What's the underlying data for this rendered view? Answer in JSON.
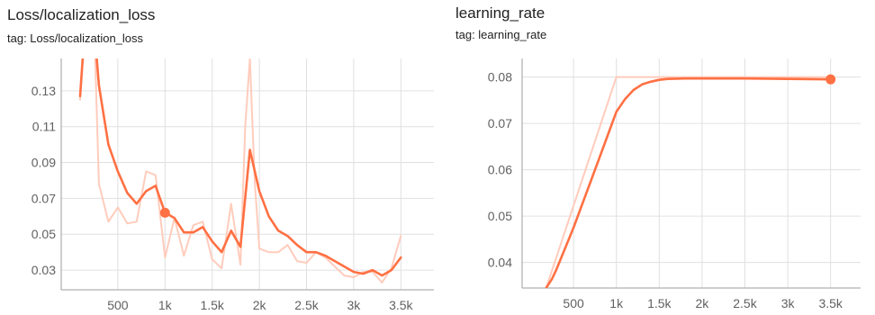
{
  "colors": {
    "line": "#ff7043",
    "line_raw": "#ffccbc",
    "grid": "#e0e0e0",
    "axis": "#9e9e9e",
    "text": "#212121",
    "tick_text": "#616161"
  },
  "chart_data": [
    {
      "type": "line",
      "title": "Loss/localization_loss",
      "subtitle": "tag: Loss/localization_loss",
      "grid": true,
      "xlim": [
        -100,
        3850
      ],
      "ylim": [
        0.019,
        0.148
      ],
      "x_ticks": [
        500,
        1000,
        1500,
        2000,
        2500,
        3000,
        3500
      ],
      "x_tick_labels": [
        "500",
        "1k",
        "1.5k",
        "2k",
        "2.5k",
        "3k",
        "3.5k"
      ],
      "y_ticks": [
        0.03,
        0.05,
        0.07,
        0.09,
        0.11,
        0.13
      ],
      "y_tick_labels": [
        "0.03",
        "0.05",
        "0.07",
        "0.09",
        "0.11",
        "0.13"
      ],
      "highlight_x": 1000,
      "series": [
        {
          "role": "smoothed",
          "x": [
            100,
            150,
            250,
            300,
            400,
            500,
            600,
            700,
            800,
            900,
            1000,
            1100,
            1200,
            1300,
            1400,
            1500,
            1600,
            1700,
            1800,
            1900,
            2000,
            2100,
            2200,
            2300,
            2400,
            2500,
            2600,
            2700,
            2800,
            2900,
            3000,
            3100,
            3200,
            3300,
            3400,
            3500
          ],
          "y": [
            0.127,
            0.165,
            0.165,
            0.133,
            0.1,
            0.085,
            0.073,
            0.067,
            0.074,
            0.077,
            0.062,
            0.059,
            0.051,
            0.051,
            0.054,
            0.046,
            0.04,
            0.052,
            0.043,
            0.097,
            0.074,
            0.06,
            0.052,
            0.049,
            0.044,
            0.04,
            0.04,
            0.038,
            0.035,
            0.032,
            0.029,
            0.028,
            0.03,
            0.027,
            0.03,
            0.037
          ]
        },
        {
          "role": "raw",
          "x": [
            100,
            150,
            250,
            300,
            400,
            500,
            600,
            700,
            800,
            900,
            1000,
            1100,
            1200,
            1300,
            1400,
            1500,
            1600,
            1700,
            1800,
            1850,
            1900,
            1950,
            2000,
            2100,
            2200,
            2300,
            2400,
            2500,
            2600,
            2700,
            2800,
            2900,
            3000,
            3100,
            3200,
            3300,
            3400,
            3500
          ],
          "y": [
            0.125,
            0.165,
            0.165,
            0.078,
            0.057,
            0.065,
            0.056,
            0.057,
            0.085,
            0.083,
            0.037,
            0.059,
            0.038,
            0.055,
            0.057,
            0.036,
            0.031,
            0.067,
            0.033,
            0.11,
            0.148,
            0.08,
            0.042,
            0.04,
            0.04,
            0.044,
            0.035,
            0.034,
            0.04,
            0.037,
            0.032,
            0.027,
            0.026,
            0.029,
            0.029,
            0.023,
            0.031,
            0.049
          ]
        }
      ]
    },
    {
      "type": "line",
      "title": "learning_rate",
      "subtitle": "tag: learning_rate",
      "grid": true,
      "xlim": [
        -100,
        3850
      ],
      "ylim": [
        0.0345,
        0.084
      ],
      "x_ticks": [
        500,
        1000,
        1500,
        2000,
        2500,
        3000,
        3500
      ],
      "x_tick_labels": [
        "500",
        "1k",
        "1.5k",
        "2k",
        "2.5k",
        "3k",
        "3.5k"
      ],
      "y_ticks": [
        0.04,
        0.05,
        0.06,
        0.07,
        0.08
      ],
      "y_tick_labels": [
        "0.04",
        "0.05",
        "0.06",
        "0.07",
        "0.08"
      ],
      "highlight_x": 3500,
      "series": [
        {
          "role": "smoothed",
          "x": [
            180,
            250,
            300,
            400,
            500,
            600,
            700,
            800,
            900,
            1000,
            1100,
            1200,
            1300,
            1400,
            1500,
            1600,
            1800,
            2000,
            2500,
            3000,
            3500
          ],
          "y": [
            0.0345,
            0.0365,
            0.0385,
            0.043,
            0.0475,
            0.0525,
            0.0575,
            0.0625,
            0.0675,
            0.0725,
            0.0752,
            0.0772,
            0.0784,
            0.079,
            0.0794,
            0.0796,
            0.0797,
            0.0797,
            0.0797,
            0.0796,
            0.0795
          ]
        },
        {
          "role": "raw",
          "x": [
            180,
            1000,
            3500
          ],
          "y": [
            0.0345,
            0.08,
            0.08
          ]
        }
      ]
    }
  ]
}
